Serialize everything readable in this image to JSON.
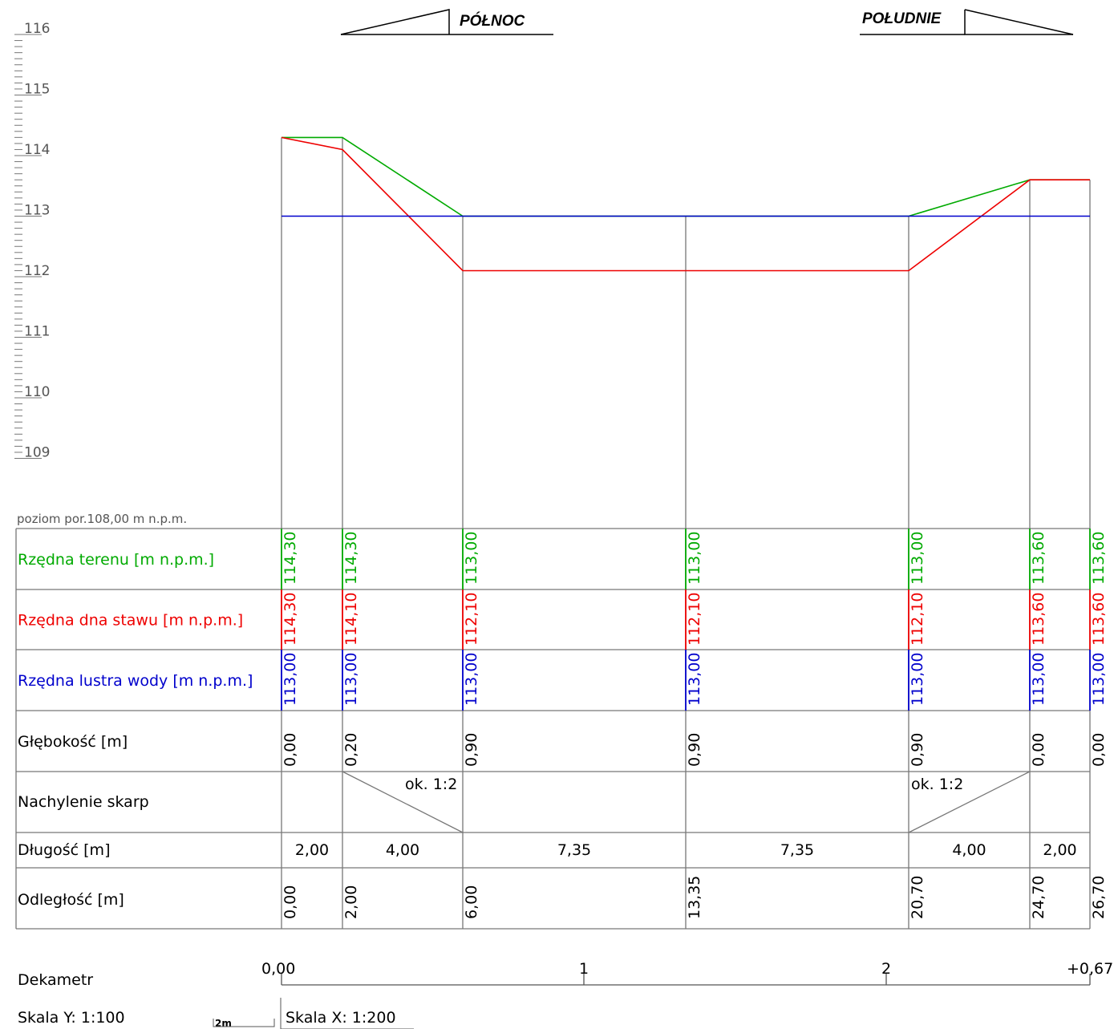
{
  "headers": {
    "north": "PÓŁNOC",
    "south": "POŁUDNIE"
  },
  "y_axis": {
    "ticks": [
      "116",
      "115",
      "114",
      "113",
      "112",
      "111",
      "110",
      "109"
    ]
  },
  "reference_level": "poziom por.108,00 m n.p.m.",
  "colors": {
    "terrain": "#00aa00",
    "bottom": "#ee0000",
    "water": "#0000cc",
    "grid": "#777777",
    "text": "#000000"
  },
  "table": {
    "rows": [
      {
        "label": "Rzędna terenu [m n.p.m.]",
        "color": "#00aa00",
        "values": [
          "114,30",
          "114,30",
          "113,00",
          "113,00",
          "113,00",
          "113,60",
          "113,60"
        ]
      },
      {
        "label": "Rzędna dna stawu [m n.p.m.]",
        "color": "#ee0000",
        "values": [
          "114,30",
          "114,10",
          "112,10",
          "112,10",
          "112,10",
          "113,60",
          "113,60"
        ]
      },
      {
        "label": "Rzędna lustra wody [m n.p.m.]",
        "color": "#0000cc",
        "values": [
          "113,00",
          "113,00",
          "113,00",
          "113,00",
          "113,00",
          "113,00",
          "113,00"
        ]
      },
      {
        "label": "Głębokość [m]",
        "color": "#000000",
        "values": [
          "0,00",
          "0,20",
          "0,90",
          "0,90",
          "0,90",
          "0,00",
          "0,00"
        ]
      }
    ],
    "slope": {
      "label": "Nachylenie skarp",
      "left": "ok.  1:2",
      "right": "ok.  1:2"
    },
    "length": {
      "label": "Długość [m]",
      "values": [
        "2,00",
        "4,00",
        "7,35",
        "7,35",
        "4,00",
        "2,00"
      ]
    },
    "distance": {
      "label": "Odległość [m]",
      "values": [
        "0,00",
        "2,00",
        "6,00",
        "13,35",
        "20,70",
        "24,70",
        "26,70"
      ]
    }
  },
  "chart_data": {
    "type": "line",
    "x": [
      0,
      2,
      6,
      13.35,
      20.7,
      24.7,
      26.7
    ],
    "ylim": [
      108,
      116
    ],
    "series": [
      {
        "name": "Rzędna terenu [m n.p.m.]",
        "values": [
          114.3,
          114.3,
          113.0,
          113.0,
          113.0,
          113.6,
          113.6
        ]
      },
      {
        "name": "Rzędna dna stawu [m n.p.m.]",
        "values": [
          114.3,
          114.1,
          112.1,
          112.1,
          112.1,
          113.6,
          113.6
        ]
      },
      {
        "name": "Rzędna lustra wody [m n.p.m.]",
        "values": [
          113.0,
          113.0,
          113.0,
          113.0,
          113.0,
          113.0,
          113.0
        ]
      }
    ]
  },
  "dekametr": {
    "label": "Dekametr",
    "start": "0,00",
    "ticks": [
      "1",
      "2"
    ],
    "end": "+0,67"
  },
  "scales": {
    "y": "Skala Y:  1:100",
    "bar": "2m",
    "x": "Skala X:  1:200"
  }
}
